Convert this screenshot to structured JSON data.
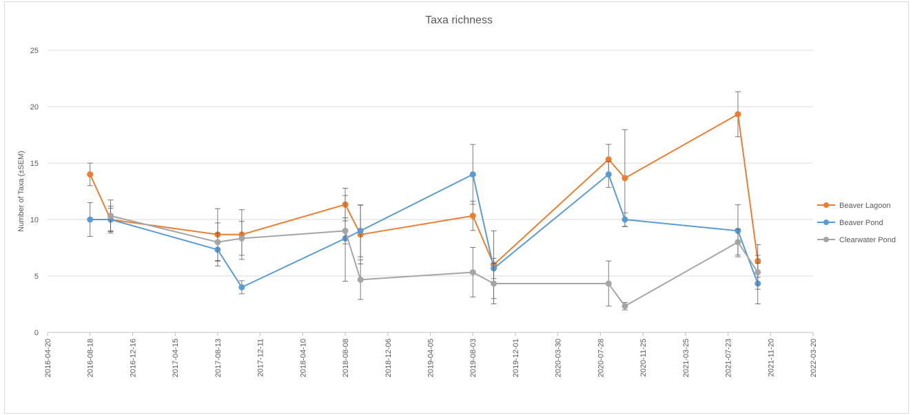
{
  "chart_data": {
    "type": "line",
    "title": "Taxa richness",
    "xlabel": "",
    "ylabel": "Number of Taxa (±SEM)",
    "ylim": [
      0,
      25
    ],
    "yticks": [
      0,
      5,
      10,
      15,
      20,
      25
    ],
    "xlim": [
      "2016-04-20",
      "2022-03-20"
    ],
    "xticks": [
      "2016-04-20",
      "2016-08-18",
      "2016-12-16",
      "2017-04-15",
      "2017-08-13",
      "2017-12-11",
      "2018-04-10",
      "2018-08-08",
      "2018-12-06",
      "2019-04-05",
      "2019-08-03",
      "2019-12-01",
      "2020-03-30",
      "2020-07-28",
      "2020-11-25",
      "2021-03-25",
      "2021-07-23",
      "2021-11-20",
      "2022-03-20"
    ],
    "grid": "horizontal",
    "legend_position": "right",
    "series": [
      {
        "name": "Beaver Lagoon",
        "color": "#ed7d31",
        "points": [
          {
            "x": "2016-08-18",
            "y": 14.0,
            "sem": 1.0
          },
          {
            "x": "2016-10-15",
            "y": 10.0,
            "sem": 1.0
          },
          {
            "x": "2017-08-13",
            "y": 8.67,
            "sem": 2.3
          },
          {
            "x": "2017-10-20",
            "y": 8.67,
            "sem": 2.2
          },
          {
            "x": "2018-08-08",
            "y": 11.33,
            "sem": 1.45
          },
          {
            "x": "2018-09-20",
            "y": 8.67,
            "sem": 2.6
          },
          {
            "x": "2019-08-03",
            "y": 10.33,
            "sem": 1.3
          },
          {
            "x": "2019-10-01",
            "y": 6.0,
            "sem": 3.0
          },
          {
            "x": "2020-08-20",
            "y": 15.33,
            "sem": 1.33
          },
          {
            "x": "2020-10-05",
            "y": 13.67,
            "sem": 4.3
          },
          {
            "x": "2021-08-20",
            "y": 19.33,
            "sem": 2.0
          },
          {
            "x": "2021-10-15",
            "y": 6.33,
            "sem": 1.45
          }
        ]
      },
      {
        "name": "Beaver Pond",
        "color": "#5b9bd5",
        "points": [
          {
            "x": "2016-08-18",
            "y": 10.0,
            "sem": 1.5
          },
          {
            "x": "2016-10-15",
            "y": 10.0,
            "sem": 1.2
          },
          {
            "x": "2017-08-13",
            "y": 7.33,
            "sem": 1.45
          },
          {
            "x": "2017-10-20",
            "y": 4.0,
            "sem": 0.58
          },
          {
            "x": "2018-08-08",
            "y": 8.33,
            "sem": 3.8
          },
          {
            "x": "2018-09-20",
            "y": 9.0,
            "sem": 2.3
          },
          {
            "x": "2019-08-03",
            "y": 14.0,
            "sem": 2.65
          },
          {
            "x": "2019-10-01",
            "y": 5.67,
            "sem": 0.9
          },
          {
            "x": "2020-08-20",
            "y": 14.0,
            "sem": 1.15
          },
          {
            "x": "2020-10-05",
            "y": 10.0,
            "sem": 0.6
          },
          {
            "x": "2021-08-20",
            "y": 9.0,
            "sem": 2.3
          },
          {
            "x": "2021-10-15",
            "y": 4.33,
            "sem": 1.8
          }
        ]
      },
      {
        "name": "Clearwater Pond",
        "color": "#a5a5a5",
        "points": [
          {
            "x": "2016-10-15",
            "y": 10.33,
            "sem": 1.4
          },
          {
            "x": "2017-08-13",
            "y": 8.0,
            "sem": 1.7
          },
          {
            "x": "2017-10-20",
            "y": 8.33,
            "sem": 1.5
          },
          {
            "x": "2018-08-08",
            "y": 9.0,
            "sem": 1.15
          },
          {
            "x": "2018-09-20",
            "y": 4.67,
            "sem": 1.75
          },
          {
            "x": "2019-08-03",
            "y": 5.33,
            "sem": 2.2
          },
          {
            "x": "2019-10-01",
            "y": 4.33,
            "sem": 1.8
          },
          {
            "x": "2020-08-20",
            "y": 4.33,
            "sem": 2.0
          },
          {
            "x": "2020-10-05",
            "y": 2.33,
            "sem": 0.33
          },
          {
            "x": "2021-08-20",
            "y": 8.0,
            "sem": 1.15
          },
          {
            "x": "2021-10-15",
            "y": 5.33,
            "sem": 1.5
          }
        ]
      }
    ]
  }
}
